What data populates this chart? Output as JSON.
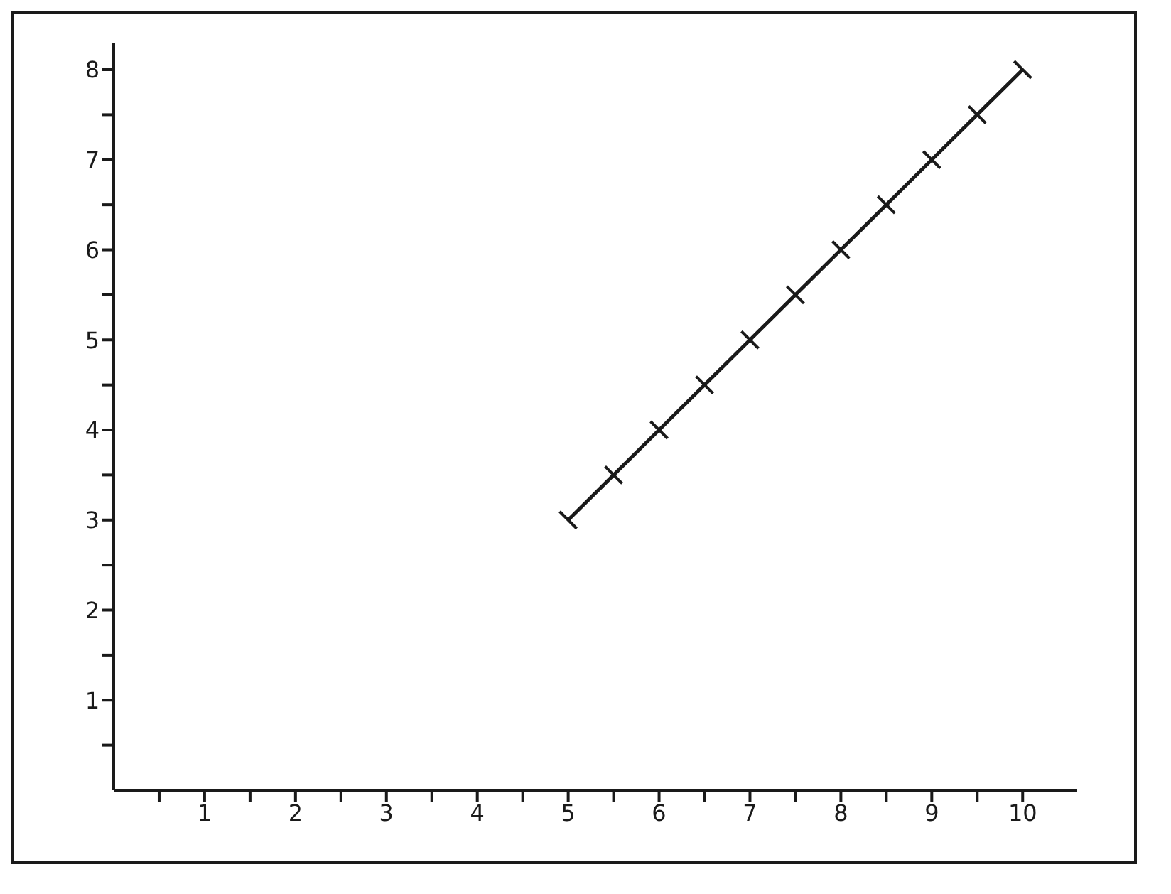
{
  "chart_data": {
    "type": "line",
    "x": [
      5,
      5.5,
      6,
      6.5,
      7,
      7.5,
      8,
      8.5,
      9,
      9.5,
      10
    ],
    "series": [
      {
        "color": "#1a1a1a",
        "values": [
          3,
          3.5,
          4,
          4.5,
          5,
          5.5,
          6,
          6.5,
          7,
          7.5,
          8
        ]
      }
    ],
    "xlim": [
      0,
      10.6
    ],
    "ylim": [
      0,
      8.3
    ],
    "xticks": [
      {
        "value": 0.5,
        "label": null
      },
      1,
      {
        "value": 1.5,
        "label": null
      },
      2,
      {
        "value": 2.5,
        "label": null
      },
      3,
      {
        "value": 3.5,
        "label": null
      },
      4,
      {
        "value": 4.5,
        "label": null
      },
      5,
      {
        "value": 5.5,
        "label": null
      },
      6,
      {
        "value": 6.5,
        "label": null
      },
      7,
      {
        "value": 7.5,
        "label": null
      },
      8,
      {
        "value": 8.5,
        "label": null
      },
      9,
      {
        "value": 9.5,
        "label": null
      },
      10
    ],
    "yticks": [
      {
        "value": 0.5,
        "label": null
      },
      1,
      {
        "value": 1.5,
        "label": null
      },
      2,
      {
        "value": 2.5,
        "label": null
      },
      3,
      {
        "value": 3.5,
        "label": null
      },
      4,
      {
        "value": 4.5,
        "label": null
      },
      5,
      {
        "value": 5.5,
        "label": null
      },
      6,
      {
        "value": 6.5,
        "label": null
      },
      7,
      {
        "value": 7.5,
        "label": null
      },
      8
    ],
    "marker": "cross",
    "line_style": "solid",
    "grid": false,
    "legend": false
  }
}
